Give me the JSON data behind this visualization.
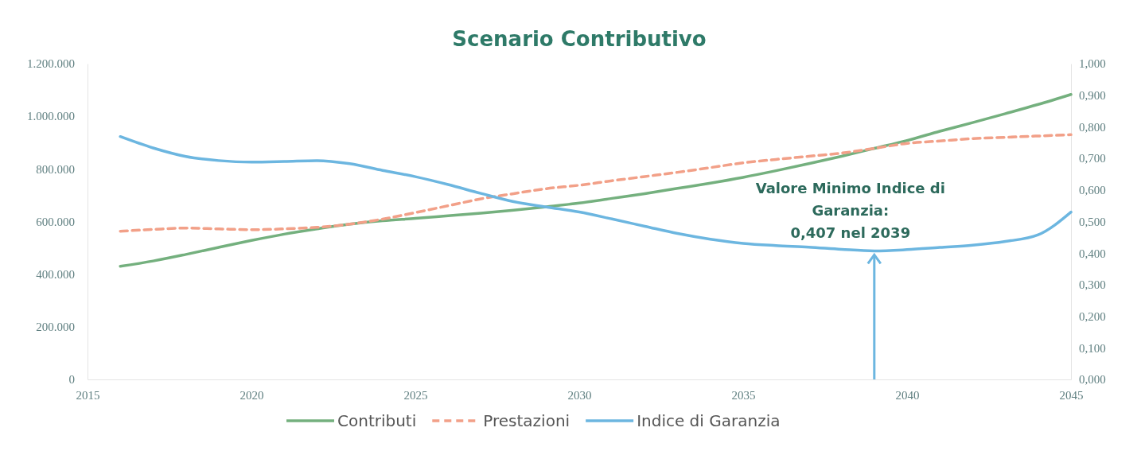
{
  "chart_data": {
    "type": "line",
    "title": "Scenario Contributivo",
    "x": [
      2016,
      2017,
      2018,
      2019,
      2020,
      2021,
      2022,
      2023,
      2024,
      2025,
      2026,
      2027,
      2028,
      2029,
      2030,
      2031,
      2032,
      2033,
      2034,
      2035,
      2036,
      2037,
      2038,
      2039,
      2040,
      2041,
      2042,
      2043,
      2044,
      2045
    ],
    "series": [
      {
        "name": "Contributi",
        "color": "#74b07e",
        "line_style": "solid",
        "values": [
          430000,
          450000,
          475000,
          502000,
          528000,
          552000,
          572000,
          590000,
          603000,
          612000,
          622000,
          632000,
          643000,
          656000,
          670000,
          688000,
          706000,
          726000,
          746000,
          768000,
          793000,
          820000,
          848000,
          878000,
          908000,
          943000,
          976000,
          1010000,
          1045000,
          1083000
        ]
      },
      {
        "name": "Prestazioni",
        "color": "#f2a088",
        "line_style": "dashed",
        "values": [
          563000,
          570000,
          575000,
          572000,
          569000,
          572000,
          578000,
          590000,
          609000,
          634000,
          660000,
          686000,
          706000,
          725000,
          738000,
          755000,
          771000,
          787000,
          805000,
          823000,
          836000,
          848000,
          860000,
          878000,
          897000,
          906000,
          915000,
          920000,
          925000,
          930000
        ]
      },
      {
        "name": "Indice di Garanzia",
        "color": "#6cb6e0",
        "line_style": "solid",
        "axis": "y2",
        "values": [
          0.769,
          0.733,
          0.706,
          0.693,
          0.688,
          0.69,
          0.693,
          0.683,
          0.662,
          0.642,
          0.617,
          0.589,
          0.563,
          0.546,
          0.53,
          0.508,
          0.485,
          0.462,
          0.444,
          0.431,
          0.424,
          0.419,
          0.412,
          0.407,
          0.411,
          0.418,
          0.425,
          0.437,
          0.458,
          0.53
        ]
      }
    ],
    "xlim": [
      2015,
      2045
    ],
    "xticks": [
      2015,
      2020,
      2025,
      2030,
      2035,
      2040,
      2045
    ],
    "ylim": [
      0,
      1200000
    ],
    "yticks": [
      {
        "value": 0,
        "label": "0"
      },
      {
        "value": 200000,
        "label": "200.000"
      },
      {
        "value": 400000,
        "label": "400.000"
      },
      {
        "value": 600000,
        "label": "600.000"
      },
      {
        "value": 800000,
        "label": "800.000"
      },
      {
        "value": 1000000,
        "label": "1.000.000"
      },
      {
        "value": 1200000,
        "label": "1.200.000"
      }
    ],
    "y2lim": [
      0,
      1
    ],
    "y2ticks": [
      {
        "value": 0,
        "label": "0,000"
      },
      {
        "value": 0.1,
        "label": "0,100"
      },
      {
        "value": 0.2,
        "label": "0,200"
      },
      {
        "value": 0.3,
        "label": "0,300"
      },
      {
        "value": 0.4,
        "label": "0,400"
      },
      {
        "value": 0.5,
        "label": "0,500"
      },
      {
        "value": 0.6,
        "label": "0,600"
      },
      {
        "value": 0.7,
        "label": "0,700"
      },
      {
        "value": 0.8,
        "label": "0,800"
      },
      {
        "value": 0.9,
        "label": "0,900"
      },
      {
        "value": 1,
        "label": "1,000"
      }
    ],
    "annotations": [
      "Valore Minimo Indice di Garanzia: 0,407 nel 2039"
    ],
    "legend": "bottom",
    "grid": false,
    "marker": "none"
  }
}
